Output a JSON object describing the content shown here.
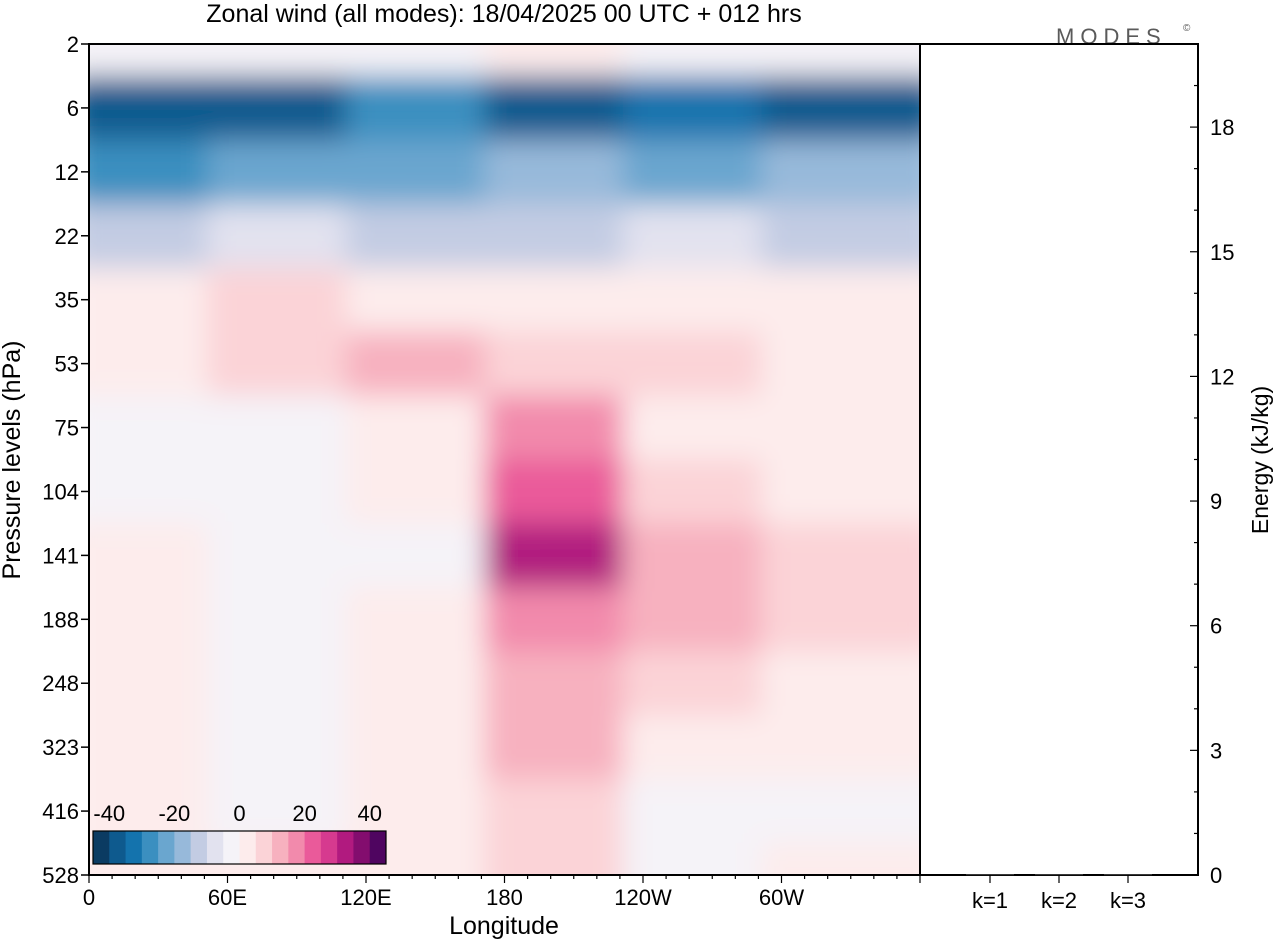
{
  "title": "Zonal wind (all modes):  18/04/2025  00 UTC  + 012 hrs",
  "brand": "MODES",
  "brand_mark": "©",
  "chart_data": [
    {
      "type": "heatmap",
      "title": "Zonal wind (all modes):  18/04/2025  00 UTC  + 012 hrs",
      "xlabel": "Longitude",
      "ylabel": "Pressure levels (hPa)",
      "x_ticks": [
        "0",
        "60E",
        "120E",
        "180",
        "120W",
        "60W"
      ],
      "x_tick_degrees": [
        0,
        60,
        120,
        180,
        240,
        300
      ],
      "xlim": [
        0,
        360
      ],
      "y_levels": [
        "2",
        "6",
        "12",
        "22",
        "35",
        "53",
        "75",
        "104",
        "141",
        "188",
        "248",
        "323",
        "416",
        "528"
      ],
      "colorbar": {
        "labels": [
          "-40",
          "-20",
          "0",
          "20",
          "40"
        ],
        "range": [
          -45,
          45
        ],
        "colors": [
          "#0b3b62",
          "#0e5a8e",
          "#1473ad",
          "#3b8fc0",
          "#6aa6cf",
          "#97b9da",
          "#c3cce3",
          "#e2e2ef",
          "#f5f3f8",
          "#fdecec",
          "#fbd3d7",
          "#f7b1bf",
          "#f28aac",
          "#ea5a9a",
          "#d63a8f",
          "#b11a7f",
          "#830d6e",
          "#4f0560"
        ]
      },
      "bands": [
        {
          "level": "2",
          "values": [
            -3,
            -5,
            -2,
            2,
            -4,
            -2
          ]
        },
        {
          "level": "6",
          "values": [
            -38,
            -36,
            -28,
            -36,
            -32,
            -38
          ]
        },
        {
          "level": "12",
          "values": [
            -26,
            -22,
            -24,
            -20,
            -22,
            -20
          ]
        },
        {
          "level": "22",
          "values": [
            -14,
            -10,
            -12,
            -12,
            -10,
            -15
          ]
        },
        {
          "level": "35",
          "values": [
            2,
            5,
            3,
            4,
            2,
            2
          ]
        },
        {
          "level": "53",
          "values": [
            4,
            7,
            10,
            9,
            7,
            3
          ]
        },
        {
          "level": "75",
          "values": [
            -1,
            -3,
            2,
            16,
            4,
            3
          ]
        },
        {
          "level": "104",
          "values": [
            -2,
            -4,
            0,
            24,
            6,
            3
          ]
        },
        {
          "level": "141",
          "values": [
            1,
            -3,
            -2,
            30,
            12,
            6
          ]
        },
        {
          "level": "188",
          "values": [
            2,
            -4,
            0,
            18,
            10,
            6
          ]
        },
        {
          "level": "248",
          "values": [
            1,
            -3,
            0,
            14,
            7,
            2
          ]
        },
        {
          "level": "323",
          "values": [
            0,
            -2,
            0,
            10,
            3,
            0
          ]
        },
        {
          "level": "416",
          "values": [
            1,
            -1,
            1,
            8,
            -2,
            -1
          ]
        },
        {
          "level": "528",
          "values": [
            1,
            0,
            1,
            5,
            -3,
            0
          ]
        }
      ]
    },
    {
      "type": "bar",
      "ylabel": "Energy (kJ/kg)",
      "categories": [
        "k=1",
        "k=2",
        "k=3"
      ],
      "values": [
        0.02,
        0.02,
        0.02
      ],
      "y_ticks": [
        "0",
        "3",
        "6",
        "9",
        "12",
        "15",
        "18"
      ],
      "ylim": [
        0,
        20
      ]
    }
  ]
}
